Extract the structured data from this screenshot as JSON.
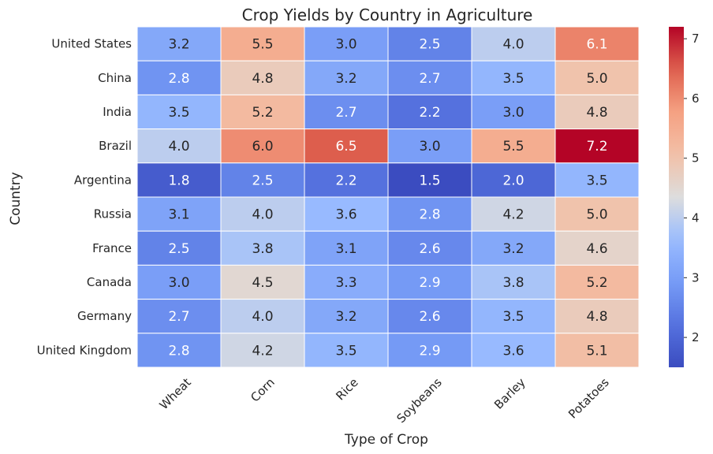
{
  "chart_data": {
    "type": "heatmap",
    "title": "Crop Yields by Country in Agriculture",
    "xlabel": "Type of Crop",
    "ylabel": "Country",
    "columns": [
      "Wheat",
      "Corn",
      "Rice",
      "Soybeans",
      "Barley",
      "Potatoes"
    ],
    "rows": [
      "United States",
      "China",
      "India",
      "Brazil",
      "Argentina",
      "Russia",
      "France",
      "Canada",
      "Germany",
      "United Kingdom"
    ],
    "values": [
      [
        3.2,
        5.5,
        3.0,
        2.5,
        4.0,
        6.1
      ],
      [
        2.8,
        4.8,
        3.2,
        2.7,
        3.5,
        5.0
      ],
      [
        3.5,
        5.2,
        2.7,
        2.2,
        3.0,
        4.8
      ],
      [
        4.0,
        6.0,
        6.5,
        3.0,
        5.5,
        7.2
      ],
      [
        1.8,
        2.5,
        2.2,
        1.5,
        2.0,
        3.5
      ],
      [
        3.1,
        4.0,
        3.6,
        2.8,
        4.2,
        5.0
      ],
      [
        2.5,
        3.8,
        3.1,
        2.6,
        3.2,
        4.6
      ],
      [
        3.0,
        4.5,
        3.3,
        2.9,
        3.8,
        5.2
      ],
      [
        2.7,
        4.0,
        3.2,
        2.6,
        3.5,
        4.8
      ],
      [
        2.8,
        4.2,
        3.5,
        2.9,
        3.6,
        5.1
      ]
    ],
    "value_range": [
      1.5,
      7.2
    ],
    "colormap": "coolwarm",
    "colorbar_ticks": [
      "2",
      "3",
      "4",
      "5",
      "6",
      "7"
    ],
    "annotations": true
  }
}
